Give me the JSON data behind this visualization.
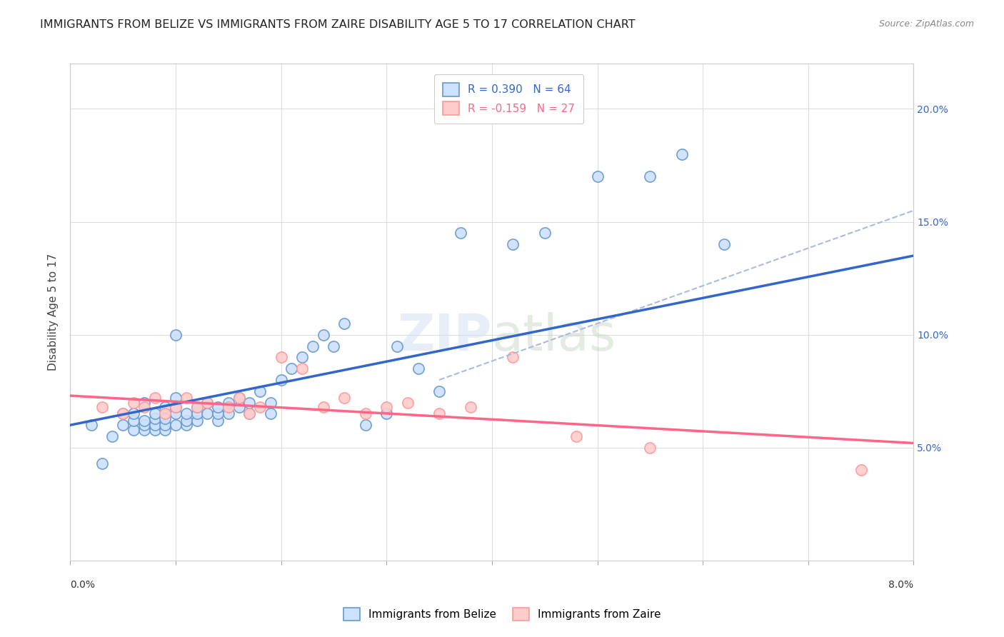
{
  "title": "IMMIGRANTS FROM BELIZE VS IMMIGRANTS FROM ZAIRE DISABILITY AGE 5 TO 17 CORRELATION CHART",
  "source": "Source: ZipAtlas.com",
  "ylabel": "Disability Age 5 to 17",
  "yaxis_ticks": [
    0.05,
    0.1,
    0.15,
    0.2
  ],
  "yaxis_labels": [
    "5.0%",
    "10.0%",
    "15.0%",
    "20.0%"
  ],
  "xlim": [
    0.0,
    0.08
  ],
  "ylim": [
    0.0,
    0.22
  ],
  "legend1_r": "R = 0.390",
  "legend1_n": "N = 64",
  "legend2_r": "R = -0.159",
  "legend2_n": "N = 27",
  "belize_edge": "#6699cc",
  "zaire_edge": "#ff9999",
  "belize_fill": "#cce0ff",
  "zaire_fill": "#ffcccc",
  "belize_line_color": "#3366cc",
  "zaire_line_color": "#ff6688",
  "dashed_line_color": "#aabbdd",
  "belize_scatter_x": [
    0.002,
    0.003,
    0.004,
    0.005,
    0.005,
    0.006,
    0.006,
    0.006,
    0.007,
    0.007,
    0.007,
    0.007,
    0.008,
    0.008,
    0.008,
    0.008,
    0.009,
    0.009,
    0.009,
    0.009,
    0.01,
    0.01,
    0.01,
    0.01,
    0.01,
    0.011,
    0.011,
    0.011,
    0.012,
    0.012,
    0.012,
    0.013,
    0.013,
    0.014,
    0.014,
    0.014,
    0.015,
    0.015,
    0.016,
    0.016,
    0.017,
    0.017,
    0.018,
    0.019,
    0.019,
    0.02,
    0.021,
    0.022,
    0.023,
    0.024,
    0.025,
    0.026,
    0.028,
    0.03,
    0.031,
    0.033,
    0.035,
    0.037,
    0.042,
    0.045,
    0.05,
    0.055,
    0.058,
    0.062
  ],
  "belize_scatter_y": [
    0.06,
    0.043,
    0.055,
    0.06,
    0.065,
    0.058,
    0.062,
    0.065,
    0.058,
    0.06,
    0.062,
    0.07,
    0.058,
    0.06,
    0.063,
    0.065,
    0.058,
    0.06,
    0.063,
    0.068,
    0.06,
    0.065,
    0.068,
    0.072,
    0.1,
    0.06,
    0.062,
    0.065,
    0.062,
    0.065,
    0.068,
    0.065,
    0.07,
    0.062,
    0.065,
    0.068,
    0.065,
    0.07,
    0.068,
    0.072,
    0.065,
    0.07,
    0.075,
    0.065,
    0.07,
    0.08,
    0.085,
    0.09,
    0.095,
    0.1,
    0.095,
    0.105,
    0.06,
    0.065,
    0.095,
    0.085,
    0.075,
    0.145,
    0.14,
    0.145,
    0.17,
    0.17,
    0.18,
    0.14
  ],
  "zaire_scatter_x": [
    0.003,
    0.005,
    0.006,
    0.007,
    0.008,
    0.009,
    0.01,
    0.011,
    0.012,
    0.013,
    0.015,
    0.016,
    0.017,
    0.018,
    0.02,
    0.022,
    0.024,
    0.026,
    0.028,
    0.03,
    0.032,
    0.035,
    0.038,
    0.042,
    0.048,
    0.055,
    0.075
  ],
  "zaire_scatter_y": [
    0.068,
    0.065,
    0.07,
    0.068,
    0.072,
    0.065,
    0.068,
    0.072,
    0.068,
    0.07,
    0.068,
    0.072,
    0.065,
    0.068,
    0.09,
    0.085,
    0.068,
    0.072,
    0.065,
    0.068,
    0.07,
    0.065,
    0.068,
    0.09,
    0.055,
    0.05,
    0.04
  ],
  "belize_line_x": [
    0.0,
    0.08
  ],
  "belize_line_y": [
    0.06,
    0.135
  ],
  "zaire_line_x": [
    0.0,
    0.08
  ],
  "zaire_line_y": [
    0.073,
    0.052
  ],
  "dashed_line_x": [
    0.035,
    0.08
  ],
  "dashed_line_y": [
    0.08,
    0.155
  ]
}
